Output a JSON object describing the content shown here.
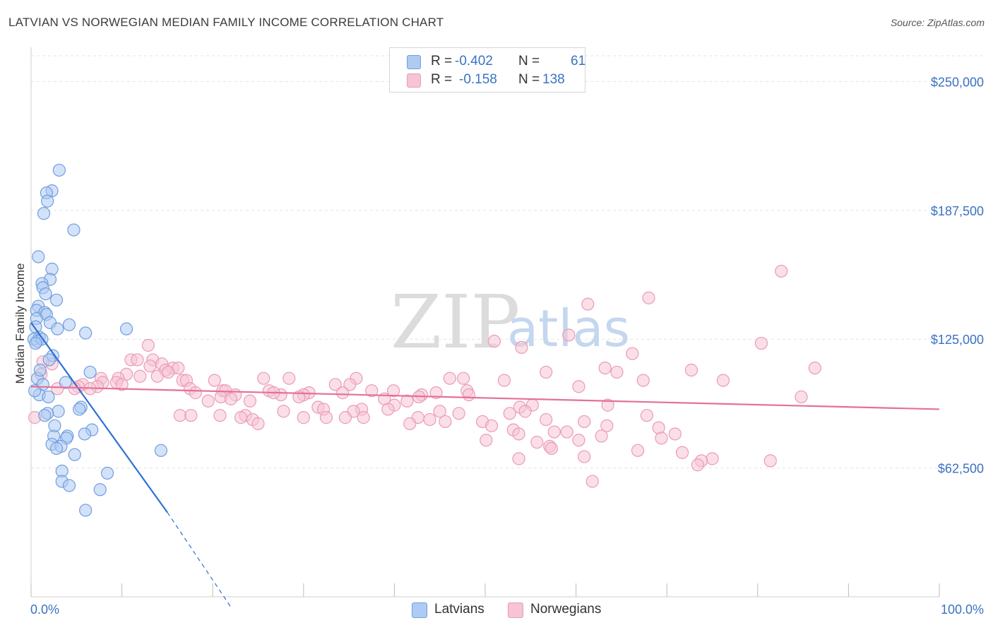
{
  "header": {
    "title": "LATVIAN VS NORWEGIAN MEDIAN FAMILY INCOME CORRELATION CHART",
    "source": "Source: ZipAtlas.com"
  },
  "watermark": {
    "zip": "ZIP",
    "atlas": "atlas"
  },
  "legend": {
    "latvians": {
      "r_label": "R =",
      "r": "-0.402",
      "n_label": "N =",
      "n": "61"
    },
    "norwegians": {
      "r_label": "R =",
      "r": "-0.158",
      "n_label": "N =",
      "n": "138"
    }
  },
  "bottom_legend": {
    "latvians": "Latvians",
    "norwegians": "Norwegians"
  },
  "colors": {
    "latvian_fill": "#aecbf2",
    "latvian_stroke": "#6f9ee0",
    "latvian_line": "#2f6fd1",
    "norwegian_fill": "#f6c4d4",
    "norwegian_stroke": "#ec9ab6",
    "norwegian_line": "#e4709a",
    "tick_text": "#3b72c4",
    "grid": "#e3e3e3"
  },
  "chart_data": {
    "type": "scatter",
    "title": "LATVIAN VS NORWEGIAN MEDIAN FAMILY INCOME CORRELATION CHART",
    "xlabel": "",
    "ylabel": "Median Family Income",
    "xlim": [
      0,
      100
    ],
    "ylim": [
      0,
      262500
    ],
    "x_tick_labels": [
      "0.0%",
      "100.0%"
    ],
    "y_ticks": [
      {
        "value": 62500,
        "label": "$62,500"
      },
      {
        "value": 125000,
        "label": "$125,000"
      },
      {
        "value": 187500,
        "label": "$187,500"
      },
      {
        "value": 250000,
        "label": "$250,000"
      }
    ],
    "series": [
      {
        "name": "Latvians",
        "r": -0.402,
        "n": 61,
        "trend": {
          "x1": 0,
          "y1": 133000,
          "x2": 15,
          "y2": 41000,
          "dash_x2": 22,
          "dash_y2": -5000
        },
        "points": [
          [
            3.1,
            207000
          ],
          [
            2.3,
            197000
          ],
          [
            1.7,
            196000
          ],
          [
            1.8,
            192000
          ],
          [
            1.4,
            186000
          ],
          [
            4.7,
            178000
          ],
          [
            0.8,
            165000
          ],
          [
            2.3,
            159000
          ],
          [
            2.1,
            154000
          ],
          [
            1.2,
            152000
          ],
          [
            1.3,
            150000
          ],
          [
            1.6,
            147000
          ],
          [
            2.8,
            144000
          ],
          [
            0.8,
            141000
          ],
          [
            0.6,
            139000
          ],
          [
            1.5,
            138000
          ],
          [
            1.7,
            137000
          ],
          [
            0.6,
            135000
          ],
          [
            2.1,
            133000
          ],
          [
            4.2,
            132000
          ],
          [
            0.5,
            131000
          ],
          [
            2.9,
            130000
          ],
          [
            10.5,
            130000
          ],
          [
            6.0,
            128000
          ],
          [
            0.9,
            126000
          ],
          [
            0.3,
            125000
          ],
          [
            0.7,
            124000
          ],
          [
            1.2,
            125000
          ],
          [
            0.5,
            123000
          ],
          [
            2.4,
            117000
          ],
          [
            2.0,
            115000
          ],
          [
            6.5,
            109000
          ],
          [
            0.7,
            106000
          ],
          [
            3.8,
            104000
          ],
          [
            1.3,
            103000
          ],
          [
            0.9,
            98000
          ],
          [
            1.9,
            97000
          ],
          [
            5.5,
            92000
          ],
          [
            5.3,
            91000
          ],
          [
            3.0,
            90000
          ],
          [
            1.8,
            89000
          ],
          [
            1.5,
            88000
          ],
          [
            6.7,
            81000
          ],
          [
            5.9,
            79000
          ],
          [
            2.5,
            78000
          ],
          [
            4.0,
            78000
          ],
          [
            3.9,
            77000
          ],
          [
            2.3,
            74000
          ],
          [
            3.3,
            73000
          ],
          [
            2.8,
            72000
          ],
          [
            14.3,
            71000
          ],
          [
            4.8,
            69000
          ],
          [
            3.4,
            61000
          ],
          [
            8.4,
            60000
          ],
          [
            3.4,
            56000
          ],
          [
            4.2,
            54000
          ],
          [
            7.6,
            52000
          ],
          [
            6.0,
            42000
          ],
          [
            0.4,
            100000
          ],
          [
            1.0,
            110000
          ],
          [
            2.6,
            83000
          ]
        ]
      },
      {
        "name": "Norwegians",
        "r": -0.158,
        "n": 138,
        "trend": {
          "x1": 0,
          "y1": 102000,
          "x2": 100,
          "y2": 91000
        },
        "points": [
          [
            82.6,
            158000
          ],
          [
            68.0,
            145000
          ],
          [
            61.3,
            142000
          ],
          [
            59.2,
            127000
          ],
          [
            51.0,
            124000
          ],
          [
            80.4,
            123000
          ],
          [
            54.0,
            121000
          ],
          [
            12.9,
            122000
          ],
          [
            66.2,
            118000
          ],
          [
            63.2,
            111000
          ],
          [
            86.3,
            111000
          ],
          [
            72.7,
            110000
          ],
          [
            64.5,
            109000
          ],
          [
            56.7,
            109000
          ],
          [
            2.3,
            113000
          ],
          [
            1.3,
            114000
          ],
          [
            11.0,
            115000
          ],
          [
            11.7,
            115000
          ],
          [
            13.4,
            115000
          ],
          [
            14.4,
            113000
          ],
          [
            13.1,
            112000
          ],
          [
            15.6,
            111000
          ],
          [
            16.2,
            111000
          ],
          [
            14.8,
            110000
          ],
          [
            15.1,
            109000
          ],
          [
            10.5,
            108000
          ],
          [
            12.0,
            107000
          ],
          [
            7.7,
            106000
          ],
          [
            9.6,
            106000
          ],
          [
            13.9,
            107000
          ],
          [
            25.6,
            106000
          ],
          [
            28.4,
            106000
          ],
          [
            35.8,
            106000
          ],
          [
            46.1,
            106000
          ],
          [
            47.6,
            106000
          ],
          [
            52.1,
            105000
          ],
          [
            67.4,
            105000
          ],
          [
            76.2,
            105000
          ],
          [
            16.7,
            105000
          ],
          [
            17.1,
            105000
          ],
          [
            20.2,
            105000
          ],
          [
            7.9,
            104000
          ],
          [
            9.4,
            104000
          ],
          [
            10.0,
            103000
          ],
          [
            5.7,
            103000
          ],
          [
            33.5,
            103000
          ],
          [
            35.1,
            103000
          ],
          [
            60.3,
            102000
          ],
          [
            5.2,
            102000
          ],
          [
            7.3,
            102000
          ],
          [
            6.5,
            101000
          ],
          [
            4.8,
            101000
          ],
          [
            2.9,
            101000
          ],
          [
            17.5,
            101000
          ],
          [
            21.1,
            100000
          ],
          [
            18.1,
            99000
          ],
          [
            21.4,
            100000
          ],
          [
            26.2,
            100000
          ],
          [
            30.6,
            99000
          ],
          [
            37.5,
            100000
          ],
          [
            39.9,
            100000
          ],
          [
            48.0,
            100000
          ],
          [
            44.6,
            99000
          ],
          [
            43.0,
            98000
          ],
          [
            42.7,
            97000
          ],
          [
            48.2,
            98000
          ],
          [
            34.3,
            99000
          ],
          [
            27.5,
            98000
          ],
          [
            26.7,
            99000
          ],
          [
            30.0,
            98000
          ],
          [
            29.5,
            97000
          ],
          [
            20.9,
            97000
          ],
          [
            22.5,
            98000
          ],
          [
            22.0,
            96000
          ],
          [
            38.9,
            96000
          ],
          [
            41.4,
            95000
          ],
          [
            24.1,
            95000
          ],
          [
            19.5,
            95000
          ],
          [
            40.0,
            93000
          ],
          [
            55.2,
            93000
          ],
          [
            63.5,
            93000
          ],
          [
            53.8,
            92000
          ],
          [
            31.6,
            92000
          ],
          [
            32.2,
            91000
          ],
          [
            36.4,
            91000
          ],
          [
            39.3,
            91000
          ],
          [
            35.5,
            90000
          ],
          [
            27.8,
            90000
          ],
          [
            45.0,
            90000
          ],
          [
            47.1,
            89000
          ],
          [
            52.7,
            89000
          ],
          [
            54.4,
            90000
          ],
          [
            67.8,
            88000
          ],
          [
            23.6,
            88000
          ],
          [
            20.8,
            88000
          ],
          [
            16.4,
            88000
          ],
          [
            17.6,
            88000
          ],
          [
            23.1,
            87000
          ],
          [
            24.4,
            86000
          ],
          [
            34.6,
            87000
          ],
          [
            30.0,
            87000
          ],
          [
            32.5,
            87000
          ],
          [
            36.6,
            87000
          ],
          [
            42.6,
            87000
          ],
          [
            43.9,
            86000
          ],
          [
            45.6,
            85000
          ],
          [
            49.7,
            85000
          ],
          [
            56.7,
            86000
          ],
          [
            60.9,
            85000
          ],
          [
            25.0,
            84000
          ],
          [
            41.7,
            84000
          ],
          [
            50.7,
            83000
          ],
          [
            63.4,
            83000
          ],
          [
            69.1,
            82000
          ],
          [
            53.1,
            81000
          ],
          [
            59.0,
            80000
          ],
          [
            53.7,
            79000
          ],
          [
            70.9,
            79000
          ],
          [
            57.6,
            80000
          ],
          [
            62.8,
            78000
          ],
          [
            69.4,
            77000
          ],
          [
            60.3,
            76000
          ],
          [
            50.1,
            76000
          ],
          [
            55.7,
            75000
          ],
          [
            57.1,
            73000
          ],
          [
            57.3,
            72000
          ],
          [
            66.8,
            71000
          ],
          [
            71.7,
            70000
          ],
          [
            60.9,
            68000
          ],
          [
            53.7,
            67000
          ],
          [
            75.0,
            67000
          ],
          [
            73.8,
            66000
          ],
          [
            73.4,
            64000
          ],
          [
            61.8,
            56000
          ],
          [
            81.4,
            66000
          ],
          [
            84.8,
            97000
          ],
          [
            0.4,
            87000
          ],
          [
            1.1,
            108000
          ]
        ]
      }
    ]
  }
}
